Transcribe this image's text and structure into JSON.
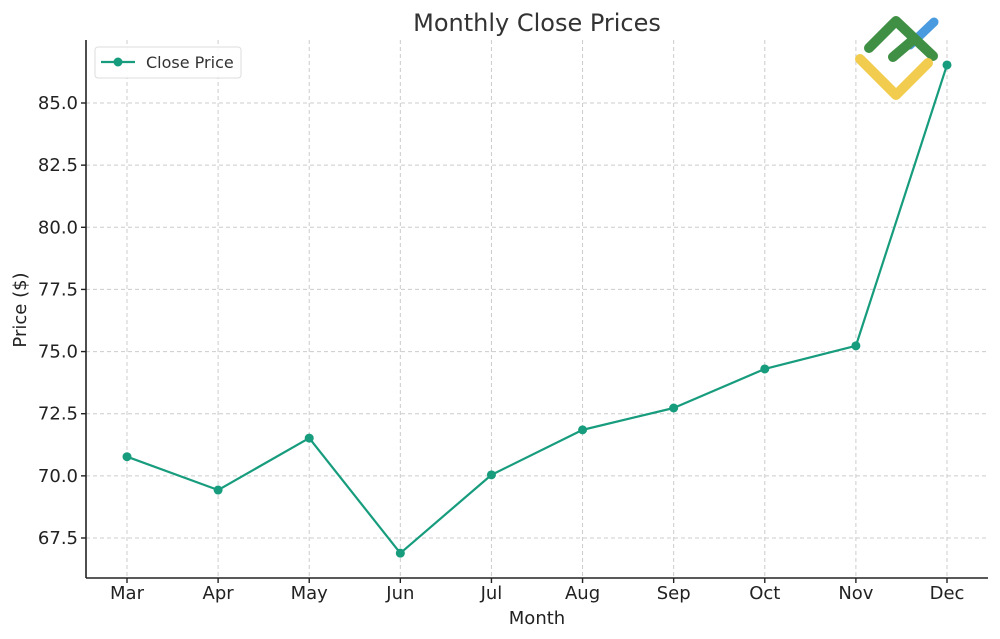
{
  "chart_data": {
    "type": "line",
    "title": "Monthly Close Prices",
    "xlabel": "Month",
    "ylabel": "Price ($)",
    "categories": [
      "Mar",
      "Apr",
      "May",
      "Jun",
      "Jul",
      "Aug",
      "Sep",
      "Oct",
      "Nov",
      "Dec"
    ],
    "series": [
      {
        "name": "Close Price",
        "color": "#179c7d",
        "marker": "circle",
        "values": [
          70.77,
          69.43,
          71.52,
          66.89,
          70.04,
          71.85,
          72.73,
          74.3,
          75.23,
          86.53
        ]
      }
    ],
    "yticks": [
      67.5,
      70.0,
      72.5,
      75.0,
      77.5,
      80.0,
      82.5,
      85.0
    ],
    "ytick_labels": [
      "67.5",
      "70.0",
      "72.5",
      "75.0",
      "77.5",
      "80.0",
      "82.5",
      "85.0"
    ],
    "ylim": [
      65.9,
      87.5
    ],
    "grid": true,
    "legend_position": "upper left"
  },
  "watermark": {
    "name": "logo",
    "colors": [
      "#3f8f45",
      "#f2cc4f",
      "#4a9ae0"
    ]
  }
}
